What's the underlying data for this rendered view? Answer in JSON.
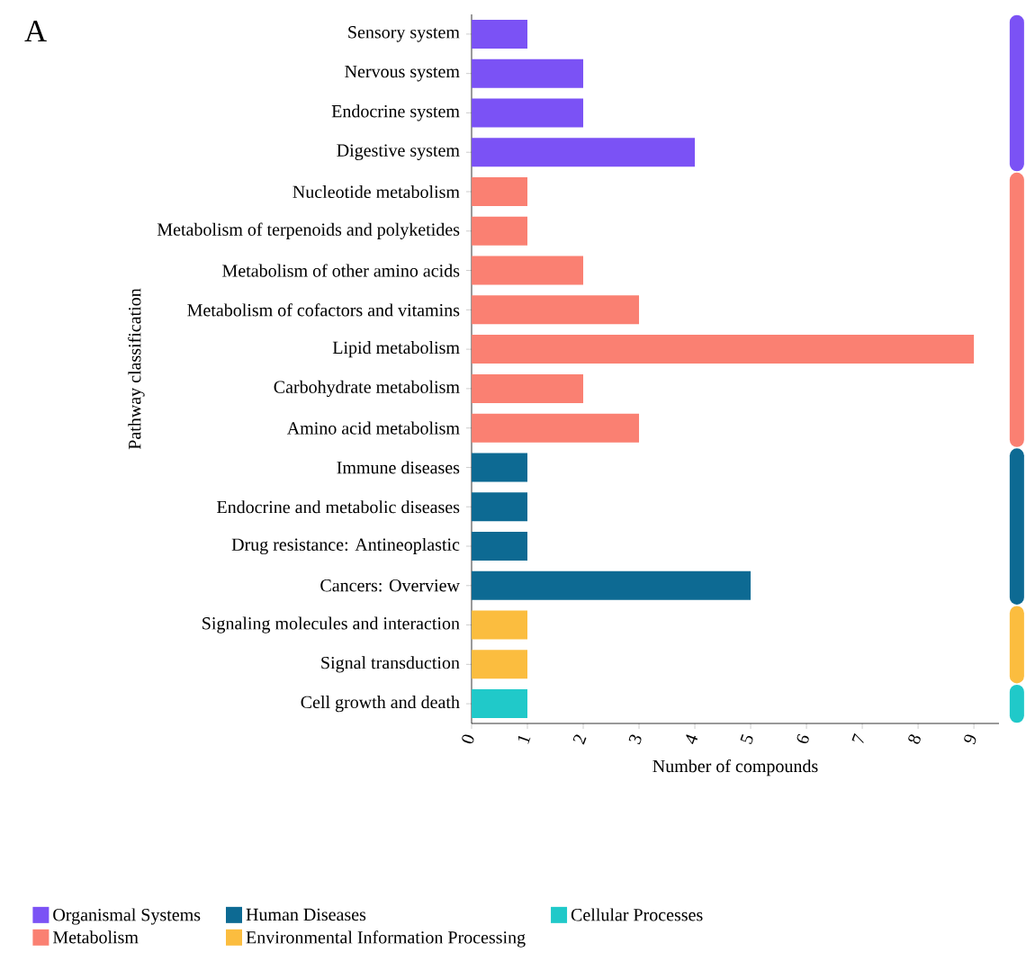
{
  "chart_data": {
    "type": "bar",
    "orientation": "horizontal",
    "xlabel": "Number of compounds",
    "ylabel": "Pathway classification",
    "annotations": [
      "A"
    ],
    "categories": [
      "Sensory system",
      "Nervous system",
      "Endocrine system",
      "Digestive system",
      "Nucleotide metabolism",
      "Metabolism of terpenoids and polyketides",
      "Metabolism of other amino acids",
      "Metabolism of cofactors and vitamins",
      "Lipid metabolism",
      "Carbohydrate metabolism",
      "Amino acid metabolism",
      "Immune diseases",
      "Endocrine and metabolic diseases",
      "Drug resistance: Antineoplastic",
      "Cancers: Overview",
      "Signaling molecules and interaction",
      "Signal transduction",
      "Cell growth and death"
    ],
    "series": [
      {
        "name": "Organismal Systems",
        "color": "#7b52f5",
        "values": [
          1,
          2,
          2,
          4,
          null,
          null,
          null,
          null,
          null,
          null,
          null,
          null,
          null,
          null,
          null,
          null,
          null,
          null
        ]
      },
      {
        "name": "Human Diseases",
        "color": "#0d6a93",
        "values": [
          null,
          null,
          null,
          null,
          null,
          null,
          null,
          null,
          null,
          null,
          null,
          1,
          1,
          1,
          5,
          null,
          null,
          null
        ]
      },
      {
        "name": "Cellular Processes",
        "color": "#20c9c9",
        "values": [
          null,
          null,
          null,
          null,
          null,
          null,
          null,
          null,
          null,
          null,
          null,
          null,
          null,
          null,
          null,
          null,
          null,
          1
        ]
      },
      {
        "name": "Metabolism",
        "color": "#fa8072",
        "values": [
          null,
          null,
          null,
          null,
          1,
          1,
          2,
          3,
          9,
          2,
          3,
          null,
          null,
          null,
          null,
          null,
          null,
          null
        ]
      },
      {
        "name": "Environmental Information Processing",
        "color": "#fbbd3f",
        "values": [
          null,
          null,
          null,
          null,
          null,
          null,
          null,
          null,
          null,
          null,
          null,
          null,
          null,
          null,
          null,
          1,
          1,
          null
        ]
      }
    ],
    "xlim": [
      0,
      9.45
    ],
    "xticks": [
      0,
      1,
      2,
      3,
      4,
      5,
      6,
      7,
      8,
      9
    ],
    "grid": false,
    "legend": "bottom"
  }
}
